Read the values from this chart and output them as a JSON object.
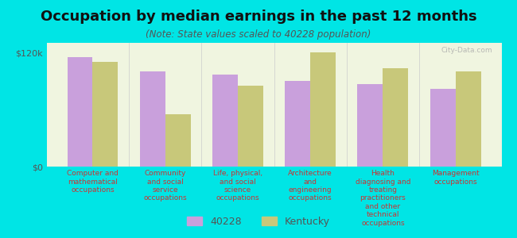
{
  "title": "Occupation by median earnings in the past 12 months",
  "subtitle": "(Note: State values scaled to 40228 population)",
  "background_color": "#00e5e5",
  "plot_bg_color": "#f0f5e0",
  "categories": [
    "Computer and\nmathematical\noccupations",
    "Community\nand social\nservice\noccupations",
    "Life, physical,\nand social\nscience\noccupations",
    "Architecture\nand\nengineering\noccupations",
    "Health\ndiagnosing and\ntreating\npractitioners\nand other\ntechnical\noccupations",
    "Management\noccupations"
  ],
  "values_40228": [
    115000,
    100000,
    97000,
    90000,
    87000,
    82000
  ],
  "values_kentucky": [
    110000,
    55000,
    85000,
    120000,
    103000,
    100000
  ],
  "color_40228": "#c9a0dc",
  "color_kentucky": "#c8c87a",
  "ylim": [
    0,
    130000
  ],
  "yticks": [
    0,
    120000
  ],
  "ytick_labels": [
    "$0",
    "$120k"
  ],
  "legend_labels": [
    "40228",
    "Kentucky"
  ],
  "bar_width": 0.35,
  "watermark": "City-Data.com",
  "label_fontsize": 6.5,
  "title_fontsize": 13,
  "subtitle_fontsize": 8.5
}
